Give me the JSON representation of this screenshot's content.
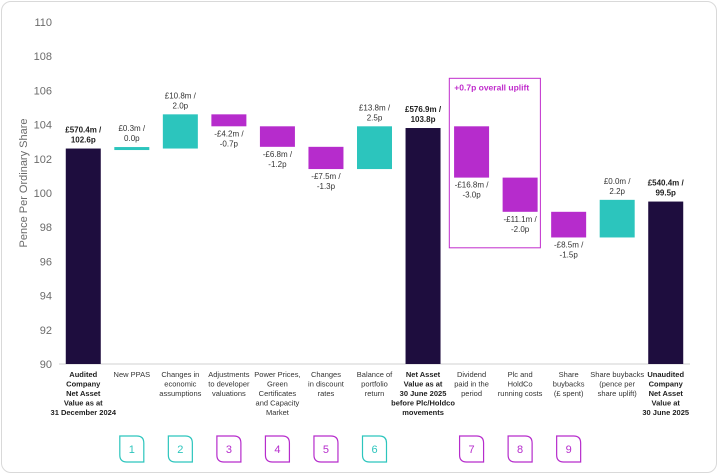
{
  "chart_data": {
    "type": "bar",
    "subtype": "waterfall",
    "ylabel": "Pence Per Ordinary Share",
    "ylim": [
      90,
      110
    ],
    "yticks": [
      "90",
      "92",
      "94",
      "96",
      "98",
      "100",
      "102",
      "104",
      "106",
      "108",
      "110"
    ],
    "grid": false,
    "colors": {
      "total": "#1e0d3e",
      "increase": "#2cc5bd",
      "decrease": "#b62ccc",
      "accent": "#c02ccc"
    },
    "callout": {
      "text": "+0.7p overall uplift",
      "bars": [
        8,
        9
      ]
    },
    "bars": [
      {
        "kind": "total",
        "start": 90,
        "end": 102.6,
        "label": [
          "£570.4m /",
          "102.6p"
        ],
        "label_bold": true,
        "category": [
          "Audited",
          "Company",
          "Net Asset",
          "Value as at",
          "31 December 2024"
        ],
        "category_bold": true,
        "step": ""
      },
      {
        "kind": "increase",
        "start": 102.6,
        "end": 102.6,
        "label": [
          "£0.3m /",
          "0.0p"
        ],
        "label_bold": false,
        "category": [
          "New PPAS"
        ],
        "category_bold": false,
        "step": "1"
      },
      {
        "kind": "increase",
        "start": 102.6,
        "end": 104.6,
        "label": [
          "£10.8m /",
          "2.0p"
        ],
        "label_bold": false,
        "category": [
          "Changes in",
          "economic",
          "assumptions"
        ],
        "category_bold": false,
        "step": "2"
      },
      {
        "kind": "decrease",
        "start": 104.6,
        "end": 103.9,
        "label": [
          "-£4.2m /",
          "-0.7p"
        ],
        "label_bold": false,
        "category": [
          "Adjustments",
          "to developer",
          "valuations"
        ],
        "category_bold": false,
        "step": "3"
      },
      {
        "kind": "decrease",
        "start": 103.9,
        "end": 102.7,
        "label": [
          "-£6.8m /",
          "-1.2p"
        ],
        "label_bold": false,
        "category": [
          "Power Prices,",
          "Green",
          "Certificates",
          "and Capacity",
          "Market"
        ],
        "category_bold": false,
        "step": "4"
      },
      {
        "kind": "decrease",
        "start": 102.7,
        "end": 101.4,
        "label": [
          "-£7.5m /",
          "-1.3p"
        ],
        "label_bold": false,
        "category": [
          "Changes",
          "in discount",
          "rates"
        ],
        "category_bold": false,
        "step": "5"
      },
      {
        "kind": "increase",
        "start": 101.4,
        "end": 103.9,
        "label": [
          "£13.8m /",
          "2.5p"
        ],
        "label_bold": false,
        "category": [
          "Balance of",
          "portfolio",
          "return"
        ],
        "category_bold": false,
        "step": "6"
      },
      {
        "kind": "total",
        "start": 90,
        "end": 103.8,
        "label": [
          "£576.9m /",
          "103.8p"
        ],
        "label_bold": true,
        "category": [
          "Net Asset",
          "Value as at",
          "30 June 2025",
          "before Plc/Holdco",
          "movements"
        ],
        "category_bold": true,
        "step": ""
      },
      {
        "kind": "decrease",
        "start": 103.9,
        "end": 100.9,
        "label": [
          "-£16.8m /",
          "-3.0p"
        ],
        "label_bold": false,
        "category": [
          "Dividend",
          "paid in the",
          "period"
        ],
        "category_bold": false,
        "step": "7"
      },
      {
        "kind": "decrease",
        "start": 100.9,
        "end": 98.9,
        "label": [
          "-£11.1m /",
          "-2.0p"
        ],
        "label_bold": false,
        "category": [
          "Plc and",
          "HoldCo",
          "running costs"
        ],
        "category_bold": false,
        "step": "8"
      },
      {
        "kind": "decrease",
        "start": 98.9,
        "end": 97.4,
        "label": [
          "-£8.5m /",
          "-1.5p"
        ],
        "label_bold": false,
        "category": [
          "Share",
          "buybacks",
          "(£ spent)"
        ],
        "category_bold": false,
        "step": "9"
      },
      {
        "kind": "increase",
        "start": 97.4,
        "end": 99.6,
        "label": [
          "£0.0m /",
          "2.2p"
        ],
        "label_bold": false,
        "category": [
          "Share buybacks",
          "(pence per",
          "share uplift)"
        ],
        "category_bold": false,
        "step": ""
      },
      {
        "kind": "total",
        "start": 90,
        "end": 99.5,
        "label": [
          "£540.4m /",
          "99.5p"
        ],
        "label_bold": true,
        "category": [
          "Unaudited",
          "Company",
          "Net Asset",
          "Value at",
          "30 June 2025"
        ],
        "category_bold": true,
        "step": ""
      }
    ]
  }
}
